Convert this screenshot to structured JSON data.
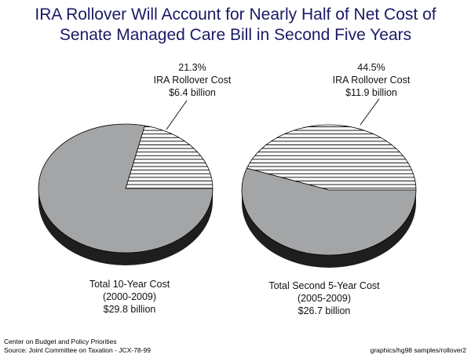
{
  "title": {
    "line1": "IRA Rollover Will Account for Nearly Half of Net Cost of",
    "line2": "Senate Managed Care Bill in Second Five Years"
  },
  "colors": {
    "title": "#1a1a66",
    "pie_gray": "#a3a5a7",
    "pie_side": "#1e1e1e",
    "hatch": "#000000"
  },
  "chart_data": [
    {
      "type": "pie",
      "total_label": {
        "line1": "Total 10-Year Cost",
        "line2": "(2000-2009)",
        "line3": "$29.8 billion"
      },
      "total_value": 29.8,
      "slices": [
        {
          "name": "IRA Rollover Cost",
          "value": 6.4,
          "percent_label": "21.3%",
          "value_label": "$6.4 billion",
          "fill": "hatch"
        },
        {
          "name": "",
          "value": 23.4,
          "fill": "solid"
        }
      ]
    },
    {
      "type": "pie",
      "total_label": {
        "line1": "Total Second 5-Year Cost",
        "line2": "(2005-2009)",
        "line3": "$26.7 billion"
      },
      "total_value": 26.7,
      "slices": [
        {
          "name": "IRA Rollover Cost",
          "value": 11.9,
          "percent_label": "44.5%",
          "value_label": "$11.9 billion",
          "fill": "hatch"
        },
        {
          "name": "",
          "value": 14.8,
          "fill": "solid"
        }
      ]
    }
  ],
  "footer": {
    "source_line1": "Center on Budget and Policy Priorities",
    "source_line2": "Source:  Joint Committee on Taxation - JCX-78-99",
    "file_ref": "graphics/hg98 samples/rollover2"
  }
}
